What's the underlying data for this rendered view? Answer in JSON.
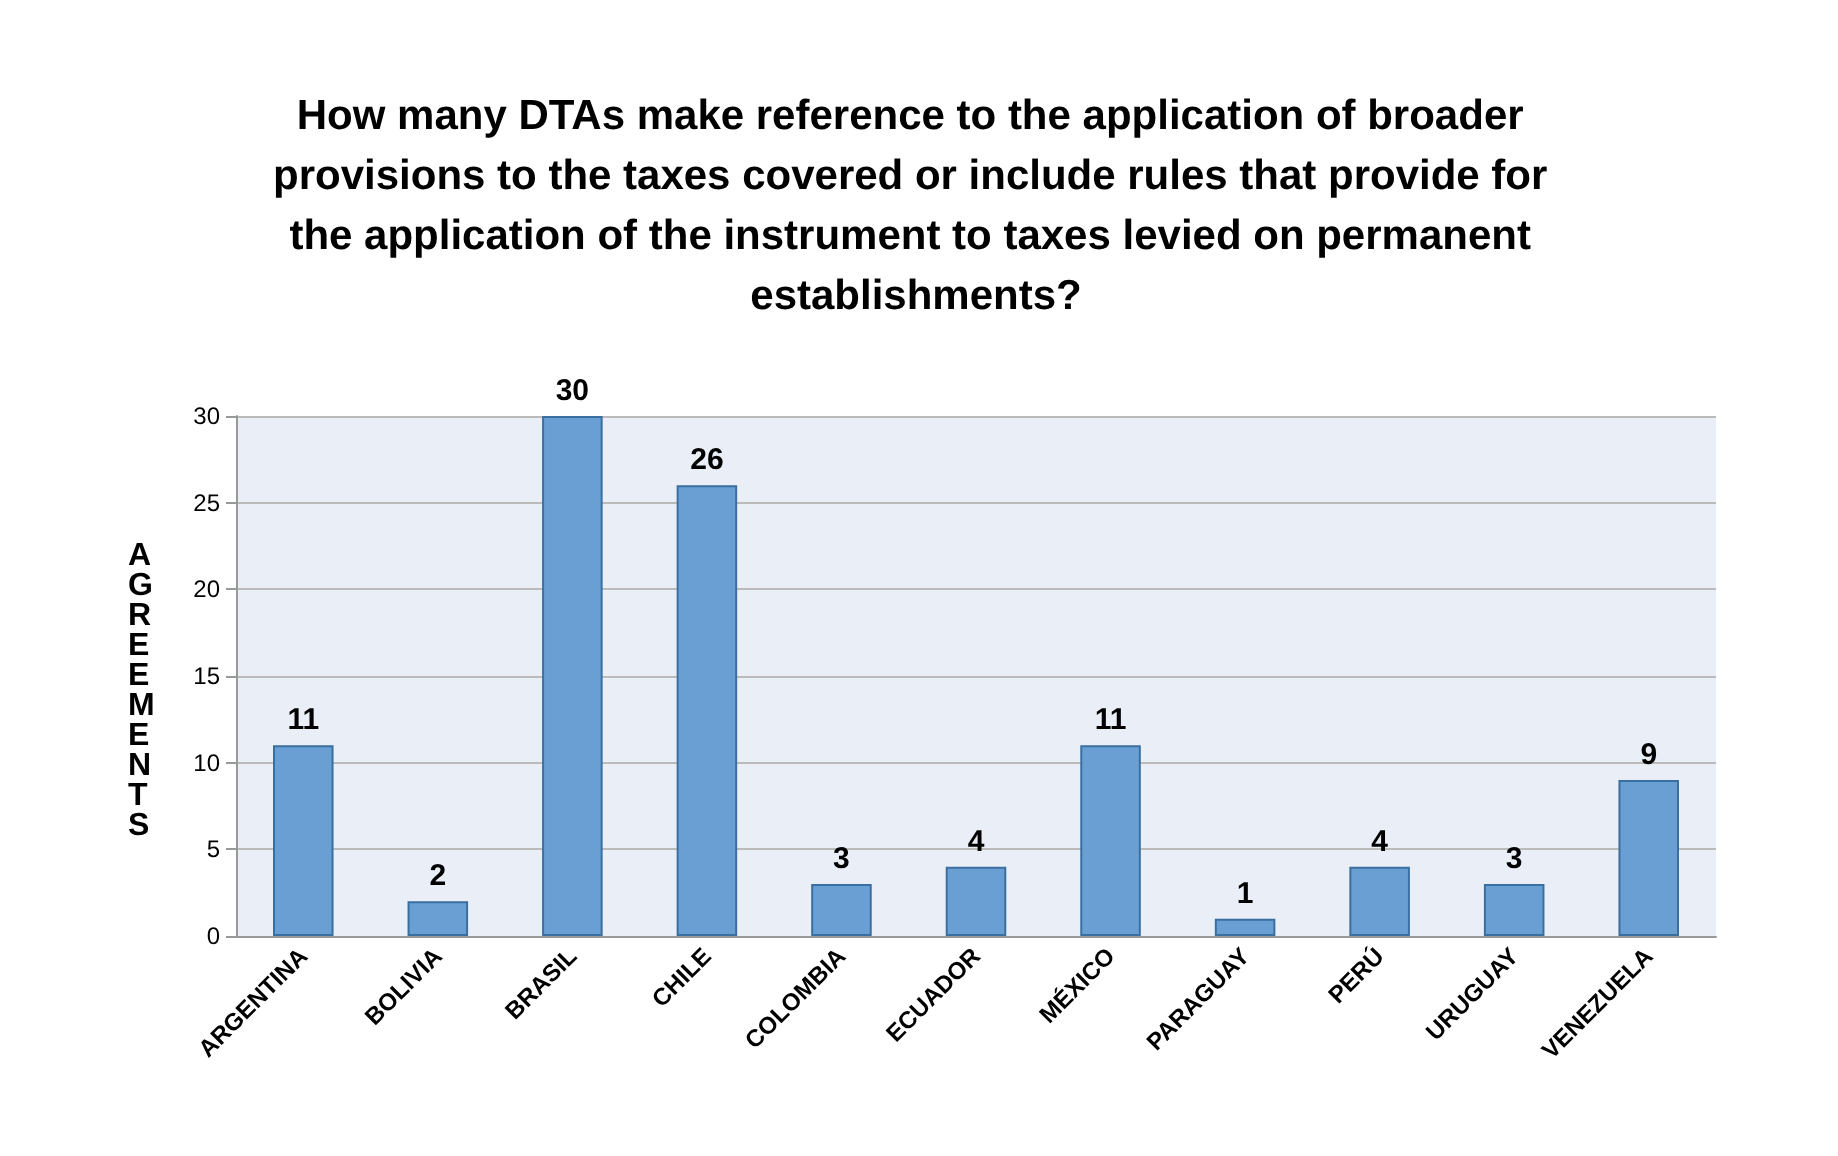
{
  "chart_data": {
    "type": "bar",
    "title": "How many DTAs make reference to the application of broader provisions to the taxes covered or include rules that provide for the application of the instrument to taxes levied on permanent establishments?",
    "ylabel": "AGREEMENTS",
    "categories": [
      "ARGENTINA",
      "BOLIVIA",
      "BRASIL",
      "CHILE",
      "COLOMBIA",
      "ECUADOR",
      "MÉXICO",
      "PARAGUAY",
      "PERÚ",
      "URUGUAY",
      "VENEZUELA"
    ],
    "values": [
      11,
      2,
      30,
      26,
      3,
      4,
      11,
      1,
      4,
      3,
      9
    ],
    "color": "#6a9fd4",
    "ylim": [
      0,
      30
    ],
    "yticks": [
      0,
      5,
      10,
      15,
      20,
      25,
      30
    ],
    "grid": "y",
    "data_labels": true
  }
}
